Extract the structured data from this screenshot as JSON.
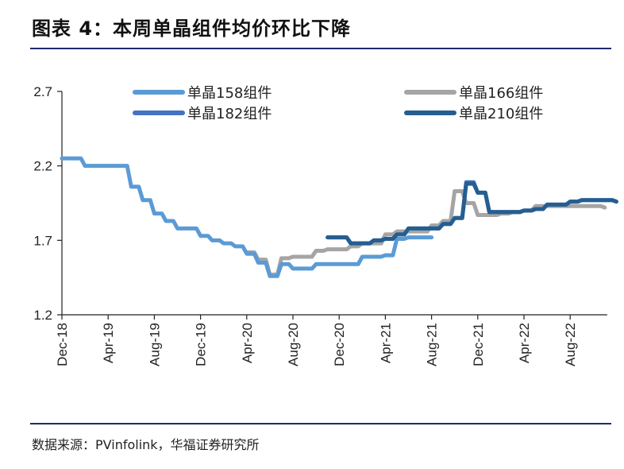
{
  "title": "图表 4：本周单晶组件均价环比下降",
  "source": "数据来源：PVinfolink，华福证券研究所",
  "chart_data": {
    "type": "line",
    "title": "",
    "xlabel": "",
    "ylabel": "",
    "ylim": [
      1.2,
      2.7
    ],
    "yticks": [
      "2.7",
      "2.2",
      "1.7",
      "1.2"
    ],
    "xticks": [
      "Dec-18",
      "Apr-19",
      "Aug-19",
      "Dec-19",
      "Apr-20",
      "Aug-20",
      "Dec-20",
      "Apr-21",
      "Aug-21",
      "Dec-21",
      "Apr-22",
      "Aug-22"
    ],
    "xrange": [
      "2018-12",
      "2022-11"
    ],
    "grid": false,
    "legend_position": "top",
    "series": [
      {
        "name": "单晶158组件",
        "color": "#5b9bd5",
        "start": "2018-12",
        "values": [
          2.25,
          2.25,
          2.2,
          2.2,
          2.2,
          2.2,
          2.06,
          1.97,
          1.88,
          1.83,
          1.78,
          1.78,
          1.73,
          1.7,
          1.68,
          1.66,
          1.61,
          1.55,
          1.46,
          1.54,
          1.51,
          1.51,
          1.54,
          1.54,
          1.54,
          1.54,
          1.59,
          1.59,
          1.6,
          1.71,
          1.72,
          1.72,
          1.72
        ]
      },
      {
        "name": "单晶166组件",
        "color": "#a5a5a5",
        "start": "2020-04",
        "values": [
          1.62,
          1.57,
          1.47,
          1.58,
          1.59,
          1.59,
          1.63,
          1.64,
          1.64,
          1.66,
          1.68,
          1.68,
          1.74,
          1.76,
          1.76,
          1.76,
          1.8,
          1.83,
          2.03,
          1.95,
          1.87,
          1.87,
          1.88,
          1.89,
          1.9,
          1.93,
          1.93,
          1.93,
          1.93,
          1.93,
          1.93,
          1.92
        ]
      },
      {
        "name": "单晶182组件",
        "color": "#4472c4",
        "start": "2020-11",
        "values": [
          1.72,
          1.72,
          1.68,
          1.68,
          1.7,
          1.71,
          1.74,
          1.78,
          1.78,
          1.78,
          1.81,
          1.85,
          2.09,
          2.02,
          1.89,
          1.89,
          1.89,
          1.9,
          1.91,
          1.94,
          1.94,
          1.96,
          1.97,
          1.97,
          1.97,
          1.96
        ]
      },
      {
        "name": "单晶210组件",
        "color": "#255e91",
        "start": "2020-11",
        "values": [
          1.72,
          1.72,
          1.68,
          1.68,
          1.7,
          1.71,
          1.74,
          1.78,
          1.78,
          1.78,
          1.81,
          1.85,
          2.08,
          2.02,
          1.89,
          1.89,
          1.89,
          1.9,
          1.91,
          1.94,
          1.94,
          1.96,
          1.97,
          1.97,
          1.97,
          1.96
        ]
      }
    ]
  }
}
